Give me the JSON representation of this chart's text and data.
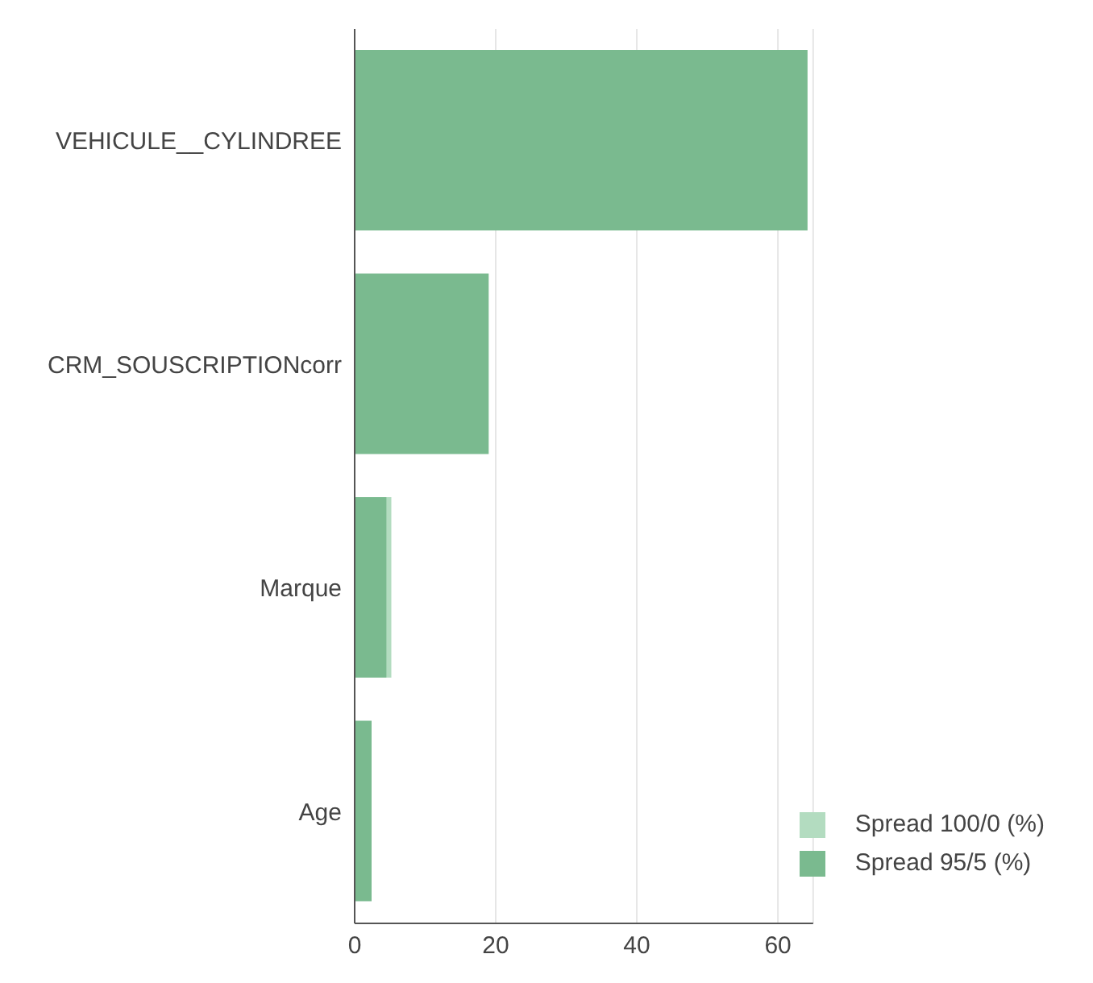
{
  "chart_data": {
    "type": "bar",
    "orientation": "horizontal",
    "categories": [
      "VEHICULE__CYLINDREE",
      "CRM_SOUSCRIPTIONcorr",
      "Marque",
      "Age"
    ],
    "series": [
      {
        "name": "Spread 100/0 (%)",
        "color": "#b3dcc0",
        "values": [
          null,
          null,
          5.2,
          null
        ]
      },
      {
        "name": "Spread 95/5 (%)",
        "color": "#7aba8f",
        "values": [
          64.2,
          19.0,
          4.5,
          2.4
        ]
      }
    ],
    "xlim": [
      0,
      65
    ],
    "xticks": [
      0,
      20,
      40,
      60
    ],
    "grid": "x",
    "legend": "bottom right"
  }
}
